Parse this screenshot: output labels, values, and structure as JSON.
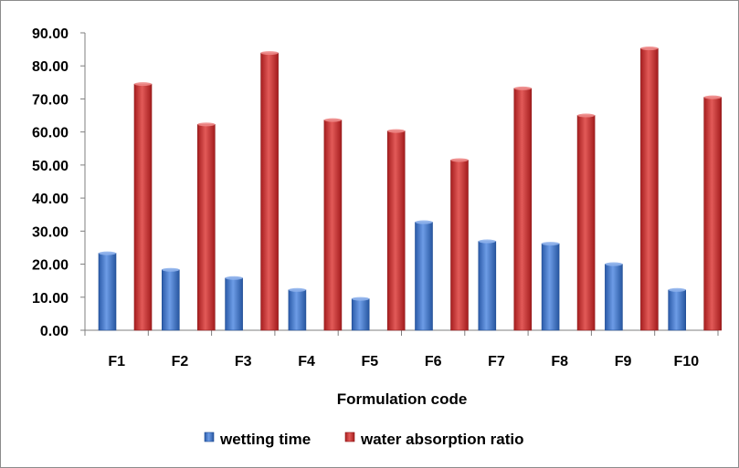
{
  "chart_data": {
    "type": "bar",
    "title": "",
    "xlabel": "Formulation code",
    "ylabel": "",
    "ylim": [
      0,
      90
    ],
    "yticks": [
      "0.00",
      "10.00",
      "20.00",
      "30.00",
      "40.00",
      "50.00",
      "60.00",
      "70.00",
      "80.00",
      "90.00"
    ],
    "categories": [
      "F1",
      "F2",
      "F3",
      "F4",
      "F5",
      "F6",
      "F7",
      "F8",
      "F9",
      "F10"
    ],
    "series": [
      {
        "name": "wetting time",
        "color": "#3b6fc4",
        "values": [
          23.3,
          18.3,
          15.8,
          12.2,
          9.5,
          32.7,
          26.9,
          26.2,
          20.0,
          12.2
        ]
      },
      {
        "name": "water absorption ratio",
        "color": "#c0282a",
        "values": [
          74.5,
          62.3,
          83.9,
          63.6,
          60.3,
          51.5,
          73.2,
          65.0,
          85.3,
          70.5
        ]
      }
    ],
    "grid": false,
    "legend": "bottom"
  }
}
